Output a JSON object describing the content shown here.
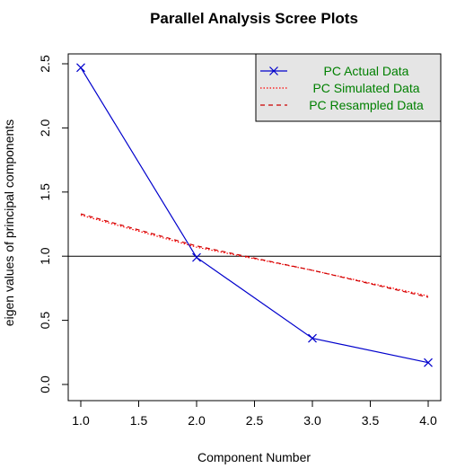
{
  "chart_data": {
    "type": "line",
    "title": "Parallel Analysis Scree Plots",
    "xlabel": "Component Number",
    "ylabel": "eigen values of principal components",
    "xlim": [
      1,
      4
    ],
    "ylim": [
      0,
      2.5
    ],
    "x_ticks": [
      "1.0",
      "1.5",
      "2.0",
      "2.5",
      "3.0",
      "3.5",
      "4.0"
    ],
    "y_ticks": [
      "0.0",
      "0.5",
      "1.0",
      "1.5",
      "2.0",
      "2.5"
    ],
    "x": [
      1,
      2,
      3,
      4
    ],
    "reference_line": 1.0,
    "series": [
      {
        "name": "PC  Actual Data",
        "values": [
          2.47,
          0.99,
          0.36,
          0.17
        ],
        "color": "#0000cc",
        "style": "solid",
        "marker": "x"
      },
      {
        "name": "PC  Simulated Data",
        "values": [
          1.32,
          1.07,
          0.89,
          0.69
        ],
        "color": "#ff0000",
        "style": "dotted",
        "marker": "none"
      },
      {
        "name": "PC  Resampled Data",
        "values": [
          1.33,
          1.08,
          0.89,
          0.68
        ],
        "color": "#cc0000",
        "style": "dashed",
        "marker": "none"
      }
    ],
    "legend": {
      "placement": "top-right",
      "background": "#e5e5e5",
      "text_color": "#008000"
    },
    "grid": false
  }
}
